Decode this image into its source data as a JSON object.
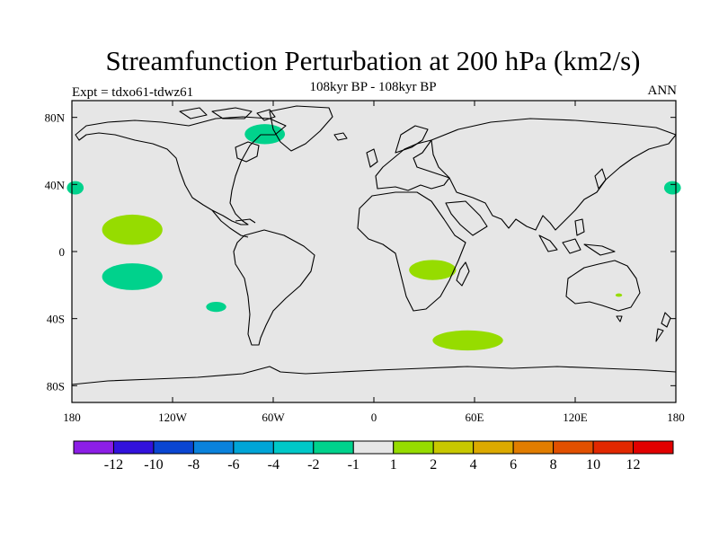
{
  "title": "Streamfunction Perturbation at 200 hPa (km2/s)",
  "experiment": "Expt = tdxo61-tdwz61",
  "subtitle": "108kyr BP - 108kyr BP",
  "season": "ANN",
  "colors": {
    "background": "#e6e6e6",
    "coastline": "#000000",
    "neg_1_to_2": "#00d28c",
    "pos_1_to_2": "#96dc00"
  },
  "map": {
    "projection": "cylindrical-equidistant",
    "lon_range": [
      -180,
      180
    ],
    "lat_range": [
      -90,
      90
    ],
    "lon_ticks": [
      {
        "value": -180,
        "label": "180"
      },
      {
        "value": -120,
        "label": "120W"
      },
      {
        "value": -60,
        "label": "60W"
      },
      {
        "value": 0,
        "label": "0"
      },
      {
        "value": 60,
        "label": "60E"
      },
      {
        "value": 120,
        "label": "120E"
      },
      {
        "value": 180,
        "label": "180"
      }
    ],
    "lat_ticks": [
      {
        "value": 80,
        "label": "80N"
      },
      {
        "value": 40,
        "label": "40N"
      },
      {
        "value": 0,
        "label": "0"
      },
      {
        "value": -40,
        "label": "40S"
      },
      {
        "value": -80,
        "label": "80S"
      }
    ],
    "anomalies": [
      {
        "name": "greenland-anomaly",
        "sign": "negative",
        "bin": "-2 to -1",
        "lon": -65,
        "lat": 70,
        "lon_radius": 12,
        "lat_radius": 6
      },
      {
        "name": "west-pacific-edge-anomaly",
        "sign": "negative",
        "bin": "-2 to -1",
        "lon": -178,
        "lat": 38,
        "lon_radius": 5,
        "lat_radius": 4
      },
      {
        "name": "east-pacific-edge-anomaly",
        "sign": "negative",
        "bin": "-2 to -1",
        "lon": 178,
        "lat": 38,
        "lon_radius": 5,
        "lat_radius": 4
      },
      {
        "name": "north-pacific-subtropical-anomaly",
        "sign": "positive",
        "bin": "1 to 2",
        "lon": -144,
        "lat": 13,
        "lon_radius": 18,
        "lat_radius": 9
      },
      {
        "name": "south-pacific-subtropical-anomaly",
        "sign": "negative",
        "bin": "-2 to -1",
        "lon": -144,
        "lat": -15,
        "lon_radius": 18,
        "lat_radius": 8
      },
      {
        "name": "southeast-pacific-small-anomaly",
        "sign": "negative",
        "bin": "-2 to -1",
        "lon": -94,
        "lat": -33,
        "lon_radius": 6,
        "lat_radius": 3
      },
      {
        "name": "southern-africa-anomaly",
        "sign": "positive",
        "bin": "1 to 2",
        "lon": 35,
        "lat": -11,
        "lon_radius": 14,
        "lat_radius": 6
      },
      {
        "name": "southern-indian-ocean-anomaly",
        "sign": "positive",
        "bin": "1 to 2",
        "lon": 56,
        "lat": -53,
        "lon_radius": 21,
        "lat_radius": 6
      },
      {
        "name": "australia-small-anomaly",
        "sign": "positive",
        "bin": "1 to 2",
        "lon": 146,
        "lat": -26,
        "lon_radius": 2,
        "lat_radius": 1
      }
    ]
  },
  "colorbar": {
    "colors": [
      "#8c1ee6",
      "#3212dc",
      "#0a46d2",
      "#0a82dc",
      "#00a5d7",
      "#00c8c8",
      "#00d28c",
      "#e6e6e6",
      "#96dc00",
      "#c8c800",
      "#dcaa00",
      "#e17d00",
      "#e15000",
      "#e12800",
      "#e10000"
    ],
    "labels": [
      "-12",
      "-10",
      "-8",
      "-6",
      "-4",
      "-2",
      "-1",
      "1",
      "2",
      "4",
      "6",
      "8",
      "10",
      "12"
    ]
  }
}
